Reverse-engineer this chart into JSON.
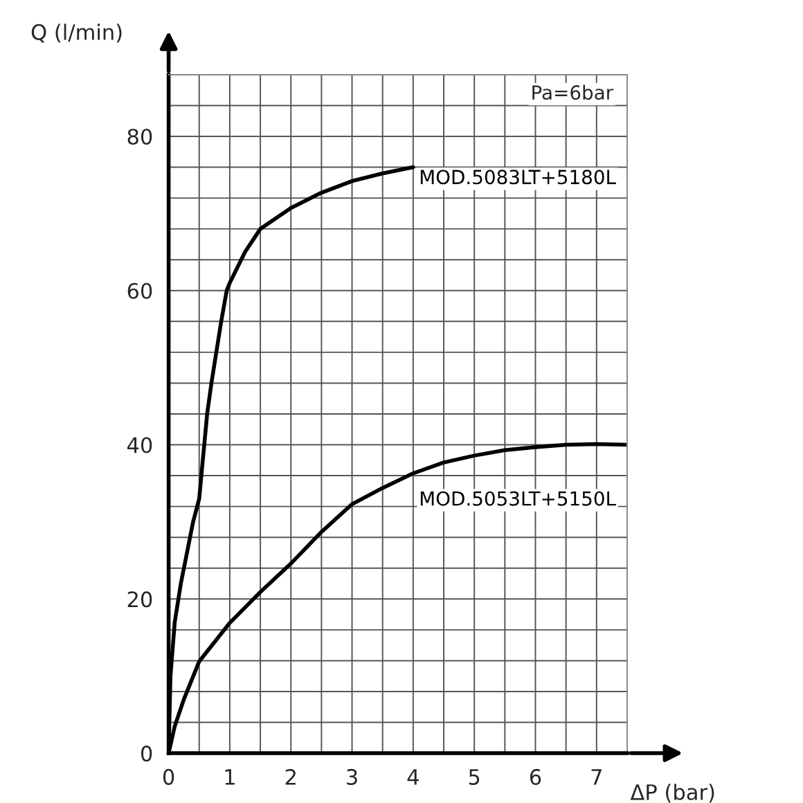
{
  "chart_data": {
    "type": "line",
    "xlabel": "ΔP (bar)",
    "ylabel": "Q (l/min)",
    "annotations": [
      "Pa=6bar"
    ],
    "series": [
      {
        "name": "MOD.5083LT+5180L",
        "color": "#000000",
        "x": [
          0,
          0.03,
          0.1,
          0.2,
          0.3,
          0.4,
          0.5,
          0.63,
          0.7,
          0.86,
          0.95,
          1.0,
          1.25,
          1.5,
          2.0,
          2.5,
          3.0,
          3.5,
          4.0
        ],
        "values": [
          0,
          10,
          17,
          22,
          26,
          30,
          33,
          44,
          48,
          56,
          60,
          61,
          65,
          68,
          70.7,
          72.7,
          74.2,
          75.2,
          76
        ]
      },
      {
        "name": "MOD.5053LT+5150L",
        "color": "#000000",
        "x": [
          0,
          0.1,
          0.25,
          0.5,
          1.0,
          1.5,
          2.0,
          2.5,
          3.0,
          3.5,
          4.0,
          4.5,
          5.0,
          5.5,
          6.0,
          6.5,
          7.0,
          7.5
        ],
        "values": [
          0,
          3.5,
          7,
          11.9,
          16.9,
          20.9,
          24.6,
          28.7,
          32.3,
          34.4,
          36.3,
          37.7,
          38.6,
          39.3,
          39.7,
          40,
          40.1,
          40
        ]
      }
    ],
    "xlim": [
      0,
      7.5
    ],
    "ylim": [
      0,
      88
    ],
    "xticks": [
      0,
      {
        "value": 0.5,
        "label": null
      },
      1,
      {
        "value": 1.5,
        "label": null
      },
      2,
      {
        "value": 2.5,
        "label": null
      },
      3,
      {
        "value": 3.5,
        "label": null
      },
      4,
      {
        "value": 4.5,
        "label": null
      },
      5,
      {
        "value": 5.5,
        "label": null
      },
      6,
      {
        "value": 6.5,
        "label": null
      },
      7,
      {
        "value": 7.5,
        "label": null
      }
    ],
    "yticks": [
      0,
      {
        "value": 4,
        "label": null
      },
      {
        "value": 8,
        "label": null
      },
      {
        "value": 12,
        "label": null
      },
      {
        "value": 16,
        "label": null
      },
      20,
      {
        "value": 24,
        "label": null
      },
      {
        "value": 28,
        "label": null
      },
      {
        "value": 32,
        "label": null
      },
      {
        "value": 36,
        "label": null
      },
      40,
      {
        "value": 44,
        "label": null
      },
      {
        "value": 48,
        "label": null
      },
      {
        "value": 52,
        "label": null
      },
      {
        "value": 56,
        "label": null
      },
      60,
      {
        "value": 64,
        "label": null
      },
      {
        "value": 68,
        "label": null
      },
      {
        "value": 72,
        "label": null
      },
      {
        "value": 76,
        "label": null
      },
      80,
      {
        "value": 84,
        "label": null
      },
      {
        "value": 88,
        "label": null
      }
    ],
    "grid": true,
    "legend": false,
    "line_style": "solid",
    "marker": "none"
  }
}
